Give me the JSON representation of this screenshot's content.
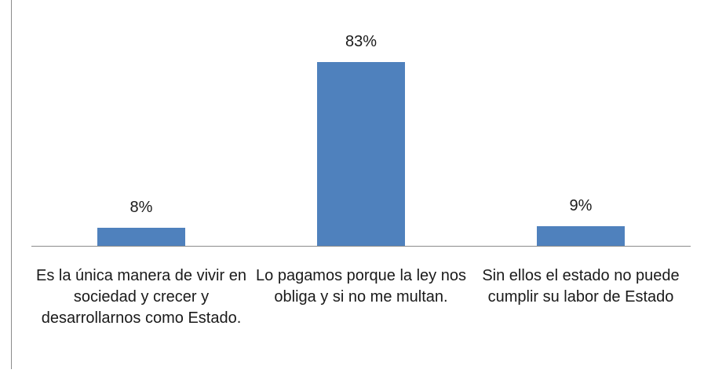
{
  "chart_data": {
    "type": "bar",
    "categories": [
      "Es la única manera de vivir en sociedad y crecer y desarrollarnos como Estado.",
      "Lo pagamos porque la ley nos obliga y si no me multan.",
      "Sin ellos el estado no puede cumplir su labor de Estado"
    ],
    "values": [
      8,
      83,
      9
    ],
    "value_labels": [
      "8%",
      "83%",
      "9%"
    ],
    "color": "#4f81bd"
  }
}
